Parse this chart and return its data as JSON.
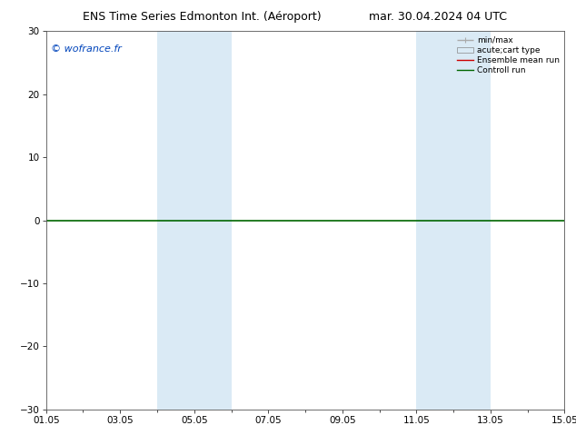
{
  "title_left": "ENS Time Series Edmonton Int. (Aéroport)",
  "title_right": "mar. 30.04.2024 04 UTC",
  "watermark": "© wofrance.fr",
  "ylim": [
    -30,
    30
  ],
  "yticks": [
    -30,
    -20,
    -10,
    0,
    10,
    20,
    30
  ],
  "xlim": [
    0,
    14
  ],
  "xtick_positions": [
    0,
    2,
    4,
    6,
    8,
    10,
    12,
    14
  ],
  "xtick_labels": [
    "01.05",
    "03.05",
    "05.05",
    "07.05",
    "09.05",
    "11.05",
    "13.05",
    "15.05"
  ],
  "shaded_bands": [
    {
      "xmin": 3.0,
      "xmax": 5.0
    },
    {
      "xmin": 10.0,
      "xmax": 12.0
    }
  ],
  "band_color": "#daeaf5",
  "zero_line_color": "#006600",
  "zero_line_lw": 1.2,
  "background_color": "#ffffff",
  "plot_background": "#ffffff",
  "legend_entries": [
    {
      "label": "min/max",
      "color": "#aaaaaa",
      "lw": 1.0
    },
    {
      "label": "acute;cart type",
      "color": "#c8ddf0",
      "lw": 6.0
    },
    {
      "label": "Ensemble mean run",
      "color": "#cc0000",
      "lw": 1.0
    },
    {
      "label": "Controll run",
      "color": "#006600",
      "lw": 1.0
    }
  ],
  "title_fontsize": 9,
  "tick_fontsize": 7.5,
  "watermark_color": "#0044bb",
  "watermark_fontsize": 8
}
